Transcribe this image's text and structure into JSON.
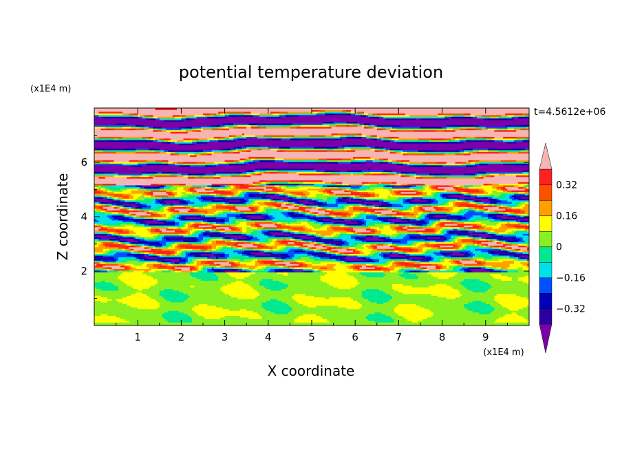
{
  "chart_data": {
    "type": "heatmap",
    "title": "potential temperature deviation",
    "xlabel": "X coordinate",
    "ylabel": "Z coordinate",
    "x_unit": "(x1E4 m)",
    "y_unit": "(x1E4 m)",
    "time_label": "t=4.5612e+06",
    "xlim": [
      0,
      10
    ],
    "ylim": [
      0,
      8
    ],
    "x_ticks": [
      "1",
      "2",
      "3",
      "4",
      "5",
      "6",
      "7",
      "8",
      "9"
    ],
    "y_ticks": [
      "2",
      "4",
      "6"
    ],
    "colorbar": {
      "levels": [
        -0.4,
        -0.32,
        -0.24,
        -0.16,
        -0.08,
        0,
        0.08,
        0.16,
        0.24,
        0.32,
        0.4
      ],
      "labels": [
        "0.32",
        "0.16",
        "0",
        "−0.16",
        "−0.32"
      ],
      "colors": [
        "#7b00a8",
        "#2c00a0",
        "#0000b8",
        "#0050ff",
        "#00e0e8",
        "#00e890",
        "#88f020",
        "#ffff00",
        "#ffa000",
        "#ff5000",
        "#ff2020",
        "#f8b4b4"
      ],
      "extend": "both"
    },
    "layers": [
      {
        "z_range": [
          0,
          2
        ],
        "description": "mostly near-zero deviation (0 to 0.08) with patches of -0.08 to 0"
      },
      {
        "z_range": [
          2,
          5.2
        ],
        "description": "turbulent mix of alternating positive and negative bands"
      },
      {
        "z_range": [
          5.2,
          8
        ],
        "description": "strong layered bands above 0.4 and below -0.4"
      }
    ]
  }
}
